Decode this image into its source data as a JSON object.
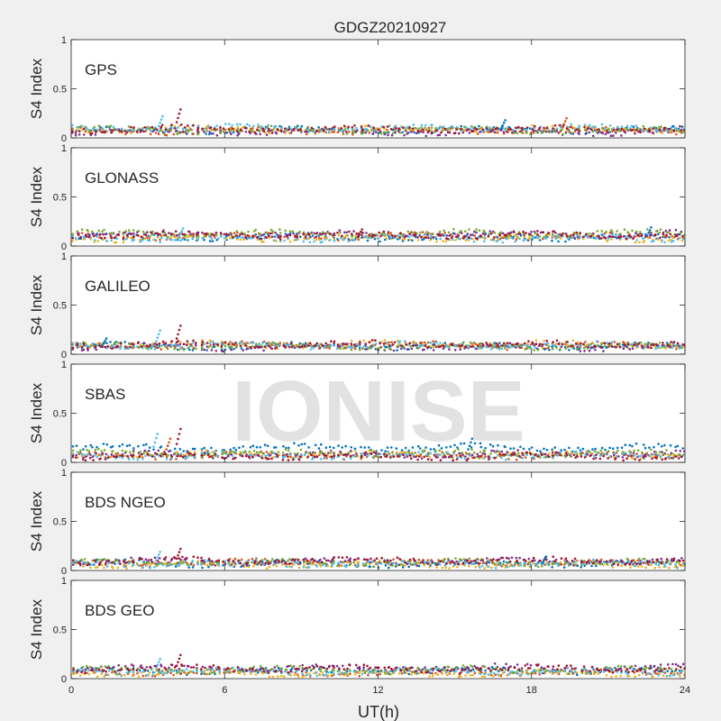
{
  "figure": {
    "title": "GDGZ20210927",
    "xlabel": "UT(h)",
    "watermark": "IONISE",
    "xticks": [
      0,
      6,
      12,
      18,
      24
    ],
    "xlim": [
      0,
      24
    ]
  },
  "colors": [
    "#0072BD",
    "#D95319",
    "#EDB120",
    "#7E2F8E",
    "#77AC30",
    "#4DBEEE",
    "#A2142F"
  ],
  "chart_data": [
    {
      "type": "scatter",
      "label": "GPS",
      "ylabel": "S4 Index",
      "ylim": [
        0,
        1
      ],
      "yticks": [
        0,
        0.5,
        1
      ],
      "series_base": [
        0.08,
        0.07,
        0.09,
        0.06,
        0.08,
        0.1,
        0.09
      ],
      "spikes": [
        {
          "x": 3.5,
          "y": 0.22
        },
        {
          "x": 4.2,
          "y": 0.29
        },
        {
          "x": 16.9,
          "y": 0.18
        },
        {
          "x": 19.3,
          "y": 0.2
        }
      ]
    },
    {
      "type": "scatter",
      "label": "GLONASS",
      "ylabel": "S4 Index",
      "ylim": [
        0,
        1
      ],
      "yticks": [
        0,
        0.5,
        1
      ],
      "series_base": [
        0.09,
        0.1,
        0.08,
        0.12,
        0.13,
        0.08,
        0.11
      ],
      "spikes": [
        {
          "x": 4.3,
          "y": 0.18
        },
        {
          "x": 11.3,
          "y": 0.17
        },
        {
          "x": 22.6,
          "y": 0.19
        }
      ]
    },
    {
      "type": "scatter",
      "label": "GALILEO",
      "ylabel": "S4 Index",
      "ylim": [
        0,
        1
      ],
      "yticks": [
        0,
        0.5,
        1
      ],
      "series_base": [
        0.08,
        0.09,
        0.1,
        0.07,
        0.08,
        0.09,
        0.1
      ],
      "spikes": [
        {
          "x": 3.4,
          "y": 0.24
        },
        {
          "x": 4.2,
          "y": 0.29
        },
        {
          "x": 1.3,
          "y": 0.16
        }
      ]
    },
    {
      "type": "scatter",
      "label": "SBAS",
      "ylabel": "S4 Index",
      "ylim": [
        0,
        1
      ],
      "yticks": [
        0,
        0.5,
        1
      ],
      "series_base": [
        0.15,
        0.07,
        0.08,
        0.08,
        0.09,
        0.07,
        0.06
      ],
      "spikes": [
        {
          "x": 3.3,
          "y": 0.29
        },
        {
          "x": 4.2,
          "y": 0.34
        },
        {
          "x": 15.6,
          "y": 0.24
        },
        {
          "x": 3.8,
          "y": 0.24
        }
      ]
    },
    {
      "type": "scatter",
      "label": "BDS NGEO",
      "ylabel": "S4 Index",
      "ylim": [
        0,
        1
      ],
      "yticks": [
        0,
        0.5,
        1
      ],
      "series_base": [
        0.07,
        0.08,
        0.06,
        0.09,
        0.08,
        0.07,
        0.1
      ],
      "spikes": [
        {
          "x": 3.4,
          "y": 0.19
        },
        {
          "x": 4.2,
          "y": 0.22
        },
        {
          "x": 18.5,
          "y": 0.14
        }
      ]
    },
    {
      "type": "scatter",
      "label": "BDS GEO",
      "ylabel": "S4 Index",
      "ylim": [
        0,
        1
      ],
      "yticks": [
        0,
        0.5,
        1
      ],
      "series_base": [
        0.08,
        0.06,
        0.05,
        0.11,
        0.09,
        0.07,
        0.1
      ],
      "spikes": [
        {
          "x": 3.4,
          "y": 0.2
        },
        {
          "x": 4.2,
          "y": 0.24
        }
      ]
    }
  ]
}
